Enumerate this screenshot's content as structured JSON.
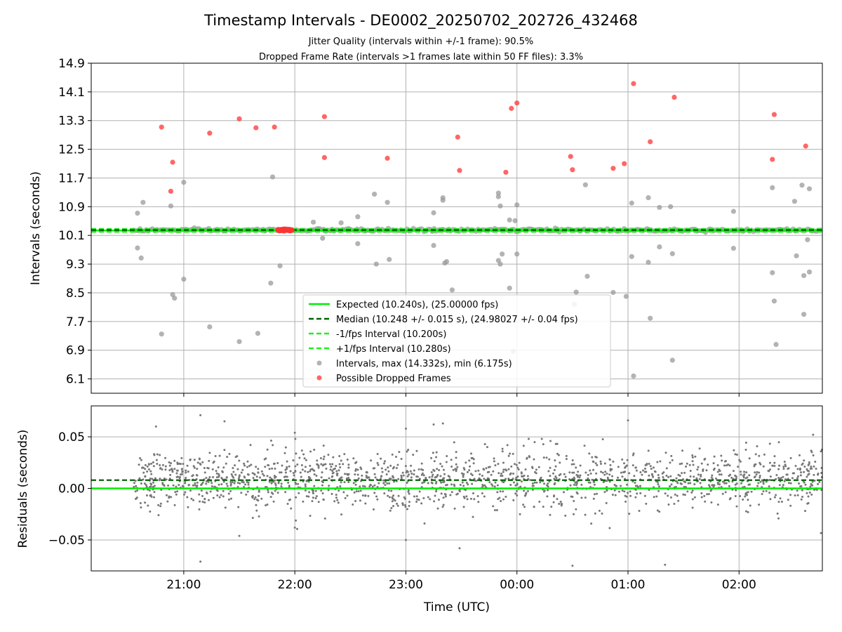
{
  "title": "Timestamp Intervals - DE0002_20250702_202726_432468",
  "subtitle_lines": [
    "Jitter Quality (intervals within +/-1 frame): 90.5%",
    "Dropped Frame Rate (intervals >1 frames late within 50 FF files): 3.3%"
  ],
  "colors": {
    "expected": "#00ee00",
    "median": "#006400",
    "fps_band": "#22ee22",
    "intervals": "#999999",
    "dropped": "#ff3333",
    "residuals": "#777777",
    "grid": "#b0b0b0"
  },
  "chart_data": [
    {
      "type": "scatter",
      "ylabel": "Intervals (seconds)",
      "xlim": [
        "20:10",
        "02:45"
      ],
      "ylim": [
        5.7,
        14.9
      ],
      "y_ticks": [
        6.1,
        6.9,
        7.7,
        8.5,
        9.3,
        10.1,
        10.9,
        11.7,
        12.5,
        13.3,
        14.1,
        14.9
      ],
      "y_tick_labels": [
        "6.1",
        "6.9",
        "7.7",
        "8.5",
        "9.3",
        "10.1",
        "10.9",
        "11.7",
        "12.5",
        "13.3",
        "14.1",
        "14.9"
      ],
      "grid": true,
      "legend_position": "lower-center",
      "reference_lines": [
        {
          "name": "Expected (10.240s), (25.00000 fps)",
          "y": 10.24,
          "style": "solid"
        },
        {
          "name": "Median (10.248 +/- 0.015 s), (24.98027 +/- 0.04 fps)",
          "y": 10.248,
          "style": "dashed"
        },
        {
          "name": "-1/fps Interval (10.200s)",
          "y": 10.2,
          "style": "dashed"
        },
        {
          "name": "+1/fps Interval (10.280s)",
          "y": 10.28,
          "style": "dashed"
        }
      ],
      "series": [
        {
          "name": "Intervals, max (14.332s), min (6.175s)",
          "points": [
            [
              "20:35",
              10.72
            ],
            [
              "20:38",
              11.02
            ],
            [
              "20:35",
              9.75
            ],
            [
              "20:37",
              9.47
            ],
            [
              "20:48",
              7.35
            ],
            [
              "20:53",
              10.92
            ],
            [
              "20:54",
              8.45
            ],
            [
              "20:55",
              8.35
            ],
            [
              "21:00",
              11.58
            ],
            [
              "21:00",
              8.88
            ],
            [
              "21:14",
              7.55
            ],
            [
              "21:30",
              7.14
            ],
            [
              "21:40",
              7.37
            ],
            [
              "21:48",
              11.73
            ],
            [
              "21:47",
              8.77
            ],
            [
              "21:52",
              9.25
            ],
            [
              "22:10",
              10.47
            ],
            [
              "22:15",
              10.02
            ],
            [
              "22:25",
              10.45
            ],
            [
              "22:34",
              10.62
            ],
            [
              "22:34",
              9.87
            ],
            [
              "22:43",
              11.25
            ],
            [
              "22:44",
              9.3
            ],
            [
              "22:50",
              11.02
            ],
            [
              "22:51",
              9.43
            ],
            [
              "23:15",
              9.82
            ],
            [
              "23:15",
              10.73
            ],
            [
              "23:20",
              11.15
            ],
            [
              "23:20",
              11.08
            ],
            [
              "23:21",
              9.33
            ],
            [
              "23:22",
              9.37
            ],
            [
              "23:25",
              8.58
            ],
            [
              "23:50",
              11.28
            ],
            [
              "23:50",
              11.18
            ],
            [
              "23:51",
              10.92
            ],
            [
              "23:51",
              9.3
            ],
            [
              "23:50",
              9.4
            ],
            [
              "23:52",
              9.58
            ],
            [
              "23:56",
              10.53
            ],
            [
              "23:56",
              8.63
            ],
            [
              "24:00",
              10.95
            ],
            [
              "24:00",
              9.58
            ],
            [
              "23:59",
              10.51
            ],
            [
              "23:58",
              6.87
            ],
            [
              "24:32",
              8.52
            ],
            [
              "24:31",
              8.18
            ],
            [
              "24:37",
              11.51
            ],
            [
              "24:38",
              8.96
            ],
            [
              "24:52",
              8.51
            ],
            [
              "24:59",
              8.4
            ],
            [
              "25:02",
              11.0
            ],
            [
              "25:02",
              9.51
            ],
            [
              "25:03",
              6.18
            ],
            [
              "25:11",
              11.15
            ],
            [
              "25:11",
              9.35
            ],
            [
              "25:12",
              7.79
            ],
            [
              "25:17",
              10.88
            ],
            [
              "25:17",
              9.78
            ],
            [
              "25:23",
              10.9
            ],
            [
              "25:24",
              9.59
            ],
            [
              "25:24",
              6.62
            ],
            [
              "25:57",
              10.77
            ],
            [
              "25:57",
              9.74
            ],
            [
              "26:18",
              11.43
            ],
            [
              "26:18",
              9.06
            ],
            [
              "26:19",
              8.27
            ],
            [
              "26:20",
              7.06
            ],
            [
              "26:30",
              11.05
            ],
            [
              "26:31",
              9.53
            ],
            [
              "26:34",
              11.5
            ],
            [
              "26:35",
              8.98
            ],
            [
              "26:35",
              7.9
            ],
            [
              "26:38",
              11.4
            ],
            [
              "26:38",
              9.08
            ],
            [
              "26:37",
              9.98
            ]
          ]
        },
        {
          "name": "Possible Dropped Frames",
          "points": [
            [
              "20:48",
              13.12
            ],
            [
              "20:54",
              12.14
            ],
            [
              "20:53",
              11.33
            ],
            [
              "21:14",
              12.95
            ],
            [
              "21:30",
              13.35
            ],
            [
              "21:39",
              13.1
            ],
            [
              "21:49",
              13.12
            ],
            [
              "22:16",
              13.41
            ],
            [
              "22:16",
              12.27
            ],
            [
              "22:50",
              12.25
            ],
            [
              "23:28",
              12.84
            ],
            [
              "23:29",
              11.91
            ],
            [
              "24:00",
              13.79
            ],
            [
              "23:57",
              13.64
            ],
            [
              "23:54",
              11.86
            ],
            [
              "24:29",
              12.3
            ],
            [
              "24:30",
              11.93
            ],
            [
              "24:52",
              11.97
            ],
            [
              "24:58",
              12.1
            ],
            [
              "25:03",
              14.33
            ],
            [
              "25:12",
              12.71
            ],
            [
              "25:25",
              13.95
            ],
            [
              "26:19",
              13.47
            ],
            [
              "26:18",
              12.22
            ],
            [
              "26:36",
              12.59
            ]
          ]
        }
      ]
    },
    {
      "type": "scatter",
      "xlabel": "Time (UTC)",
      "ylabel": "Residuals (seconds)",
      "xlim": [
        "20:10",
        "02:45"
      ],
      "ylim": [
        -0.08,
        0.08
      ],
      "y_ticks": [
        -0.05,
        0.0,
        0.05
      ],
      "y_tick_labels": [
        "−0.05",
        "0.00",
        "0.05"
      ],
      "x_ticks": [
        "21:00",
        "22:00",
        "23:00",
        "00:00",
        "01:00",
        "02:00"
      ],
      "x_tick_labels": [
        "21:00",
        "22:00",
        "23:00",
        "00:00",
        "01:00",
        "02:00"
      ],
      "grid": true,
      "reference_lines": [
        {
          "y": 0.0,
          "style": "solid"
        },
        {
          "y": 0.008,
          "style": "dashed"
        }
      ],
      "outliers": [
        [
          "20:45",
          0.06
        ],
        [
          "21:09",
          0.071
        ],
        [
          "21:09",
          -0.071
        ],
        [
          "21:22",
          0.065
        ],
        [
          "21:30",
          -0.046
        ],
        [
          "22:00",
          0.054
        ],
        [
          "22:00",
          -0.038
        ],
        [
          "23:00",
          -0.05
        ],
        [
          "23:00",
          0.058
        ],
        [
          "23:15",
          0.062
        ],
        [
          "23:29",
          -0.058
        ],
        [
          "23:20",
          0.063
        ],
        [
          "24:30",
          -0.075
        ],
        [
          "25:00",
          0.066
        ],
        [
          "25:20",
          -0.074
        ],
        [
          "26:40",
          0.052
        ]
      ]
    }
  ]
}
